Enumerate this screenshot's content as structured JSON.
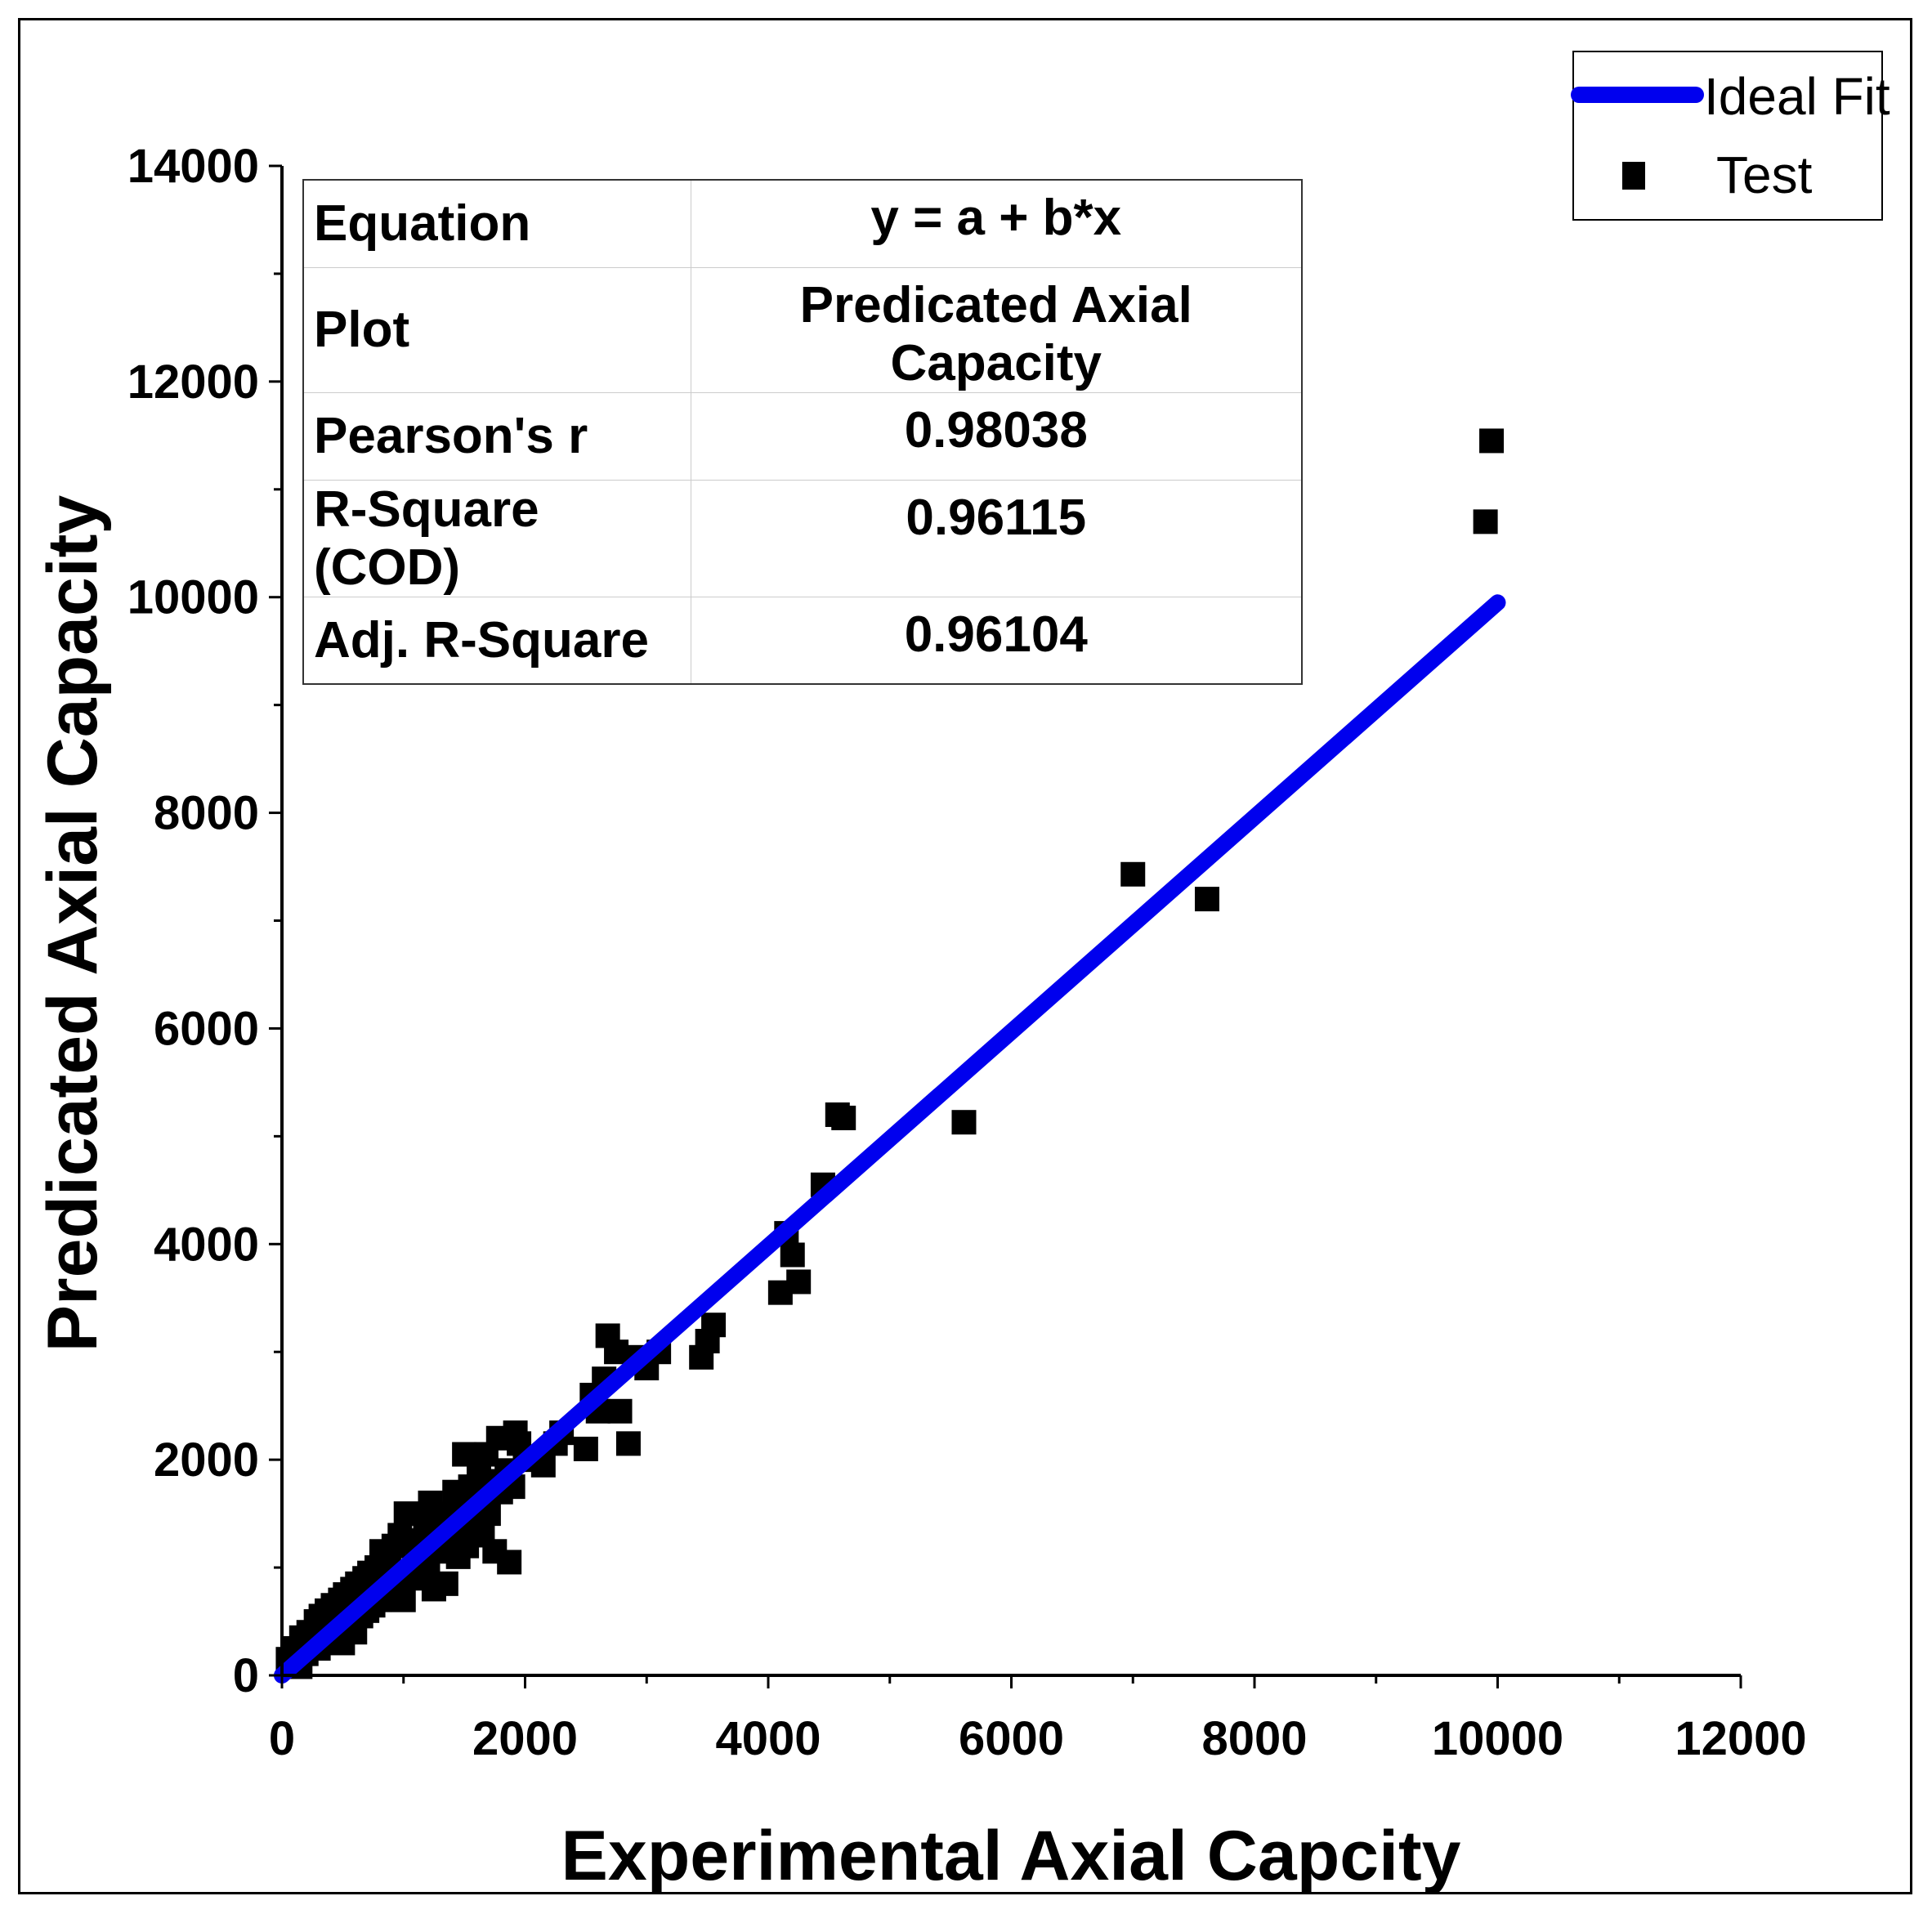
{
  "chart_data": {
    "type": "scatter",
    "xlabel": "Experimental Axial Capcity",
    "ylabel": "Predicated Axial Capacity",
    "xlim": [
      0,
      12000
    ],
    "ylim": [
      0,
      14000
    ],
    "x_ticks": [
      "0",
      "2000",
      "4000",
      "6000",
      "8000",
      "10000",
      "12000"
    ],
    "y_ticks": [
      "0",
      "2000",
      "4000",
      "6000",
      "8000",
      "10000",
      "12000",
      "14000"
    ],
    "grid": false,
    "legend_position": "top-right",
    "legend": [
      {
        "label": "Ideal Fit",
        "type": "line",
        "color": "#0000ee"
      },
      {
        "label": "Test",
        "type": "marker",
        "color": "#000000"
      }
    ],
    "series": [
      {
        "name": "Test",
        "type": "scatter",
        "color": "#000000",
        "points": [
          [
            50,
            150
          ],
          [
            100,
            250
          ],
          [
            150,
            80
          ],
          [
            160,
            350
          ],
          [
            200,
            200
          ],
          [
            220,
            400
          ],
          [
            250,
            300
          ],
          [
            280,
            500
          ],
          [
            300,
            250
          ],
          [
            320,
            550
          ],
          [
            350,
            350
          ],
          [
            370,
            600
          ],
          [
            400,
            400
          ],
          [
            420,
            650
          ],
          [
            450,
            450
          ],
          [
            480,
            700
          ],
          [
            500,
            300
          ],
          [
            520,
            750
          ],
          [
            550,
            500
          ],
          [
            580,
            800
          ],
          [
            600,
            400
          ],
          [
            620,
            850
          ],
          [
            650,
            550
          ],
          [
            680,
            900
          ],
          [
            700,
            600
          ],
          [
            720,
            950
          ],
          [
            750,
            650
          ],
          [
            780,
            1000
          ],
          [
            800,
            700
          ],
          [
            820,
            1150
          ],
          [
            850,
            750
          ],
          [
            880,
            1050
          ],
          [
            900,
            800
          ],
          [
            920,
            1200
          ],
          [
            950,
            850
          ],
          [
            970,
            1300
          ],
          [
            1000,
            700
          ],
          [
            1020,
            1500
          ],
          [
            1050,
            900
          ],
          [
            1080,
            1250
          ],
          [
            1100,
            950
          ],
          [
            1120,
            1100
          ],
          [
            1150,
            1000
          ],
          [
            1180,
            1400
          ],
          [
            1200,
            1050
          ],
          [
            1220,
            1600
          ],
          [
            1250,
            800
          ],
          [
            1280,
            1300
          ],
          [
            1300,
            1150
          ],
          [
            1320,
            1500
          ],
          [
            1350,
            850
          ],
          [
            1380,
            1250
          ],
          [
            1400,
            1350
          ],
          [
            1420,
            1700
          ],
          [
            1450,
            1100
          ],
          [
            1480,
            1500
          ],
          [
            1500,
            2050
          ],
          [
            1520,
            1200
          ],
          [
            1550,
            1750
          ],
          [
            1580,
            1400
          ],
          [
            1600,
            1600
          ],
          [
            1620,
            1900
          ],
          [
            1650,
            1300
          ],
          [
            1680,
            2050
          ],
          [
            1700,
            1500
          ],
          [
            1720,
            1800
          ],
          [
            1750,
            1150
          ],
          [
            1780,
            2200
          ],
          [
            1800,
            1700
          ],
          [
            1850,
            1900
          ],
          [
            1870,
            1050
          ],
          [
            1900,
            1750
          ],
          [
            1920,
            2250
          ],
          [
            1950,
            2150
          ],
          [
            2000,
            2000
          ],
          [
            2150,
            1950
          ],
          [
            2250,
            2150
          ],
          [
            2300,
            2250
          ],
          [
            2500,
            2100
          ],
          [
            2550,
            2600
          ],
          [
            2600,
            2450
          ],
          [
            2650,
            2750
          ],
          [
            2680,
            3150
          ],
          [
            2750,
            3000
          ],
          [
            2780,
            2450
          ],
          [
            2850,
            2150
          ],
          [
            2900,
            2950
          ],
          [
            3000,
            2850
          ],
          [
            3100,
            3000
          ],
          [
            3450,
            2950
          ],
          [
            3500,
            3100
          ],
          [
            3550,
            3250
          ],
          [
            4100,
            3550
          ],
          [
            4150,
            4100
          ],
          [
            4200,
            3900
          ],
          [
            4250,
            3650
          ],
          [
            4450,
            4550
          ],
          [
            4570,
            5200
          ],
          [
            4620,
            5170
          ],
          [
            5610,
            5130
          ],
          [
            7000,
            7430
          ],
          [
            7610,
            7200
          ],
          [
            9900,
            10700
          ],
          [
            9950,
            11450
          ]
        ]
      },
      {
        "name": "Ideal Fit",
        "type": "line",
        "color": "#0000ee",
        "x": [
          0,
          10000
        ],
        "y": [
          0,
          9950
        ]
      }
    ],
    "stats_table": [
      {
        "key": "Equation",
        "value": "y = a + b*x"
      },
      {
        "key": "Plot",
        "value": "Predicated Axial Capacity"
      },
      {
        "key": "Pearson's r",
        "value": "0.98038"
      },
      {
        "key": "R-Square (COD)",
        "value": "0.96115"
      },
      {
        "key": "Adj. R-Square",
        "value": "0.96104"
      }
    ]
  }
}
